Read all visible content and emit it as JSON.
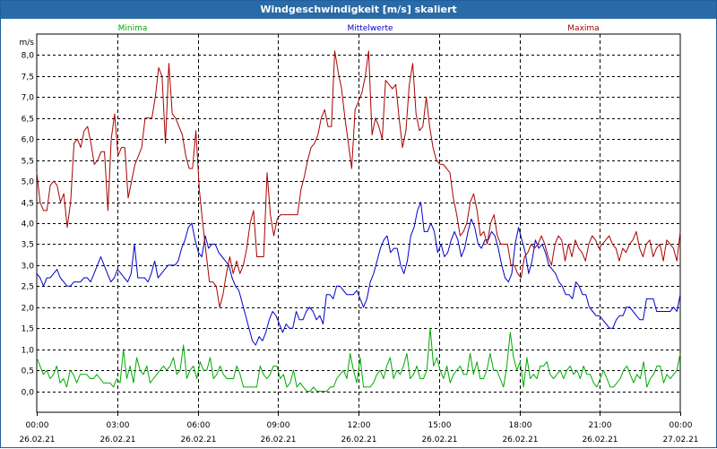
{
  "window": {
    "title": "Windgeschwindigkeit [m/s] skaliert"
  },
  "chart_data": {
    "type": "line",
    "unit": "m/s",
    "y_ticks": [
      "0,0",
      "0,5",
      "1,0",
      "1,5",
      "2,0",
      "2,5",
      "3,0",
      "3,5",
      "4,0",
      "4,5",
      "5,0",
      "5,5",
      "6,0",
      "6,5",
      "7,0",
      "7,5",
      "8,0"
    ],
    "ylim": [
      -0.5,
      8.5
    ],
    "x_ticks": [
      {
        "time": "00:00",
        "date": "26.02.21"
      },
      {
        "time": "03:00",
        "date": "26.02.21"
      },
      {
        "time": "06:00",
        "date": "26.02.21"
      },
      {
        "time": "09:00",
        "date": "26.02.21"
      },
      {
        "time": "12:00",
        "date": "26.02.21"
      },
      {
        "time": "15:00",
        "date": "26.02.21"
      },
      {
        "time": "18:00",
        "date": "26.02.21"
      },
      {
        "time": "21:00",
        "date": "26.02.21"
      },
      {
        "time": "00:00",
        "date": "27.02.21"
      }
    ],
    "xlim_hours": [
      0,
      24
    ],
    "grid": true,
    "series": [
      {
        "name": "Minima",
        "color": "#00aa00",
        "legend_position": "left",
        "values": [
          0.8,
          0.6,
          0.4,
          0.5,
          0.3,
          0.4,
          0.6,
          0.2,
          0.3,
          0.1,
          0.5,
          0.4,
          0.2,
          0.4,
          0.4,
          0.4,
          0.3,
          0.3,
          0.4,
          0.3,
          0.2,
          0.2,
          0.2,
          0.1,
          0.3,
          0.2,
          1.0,
          0.3,
          0.6,
          0.2,
          0.8,
          0.5,
          0.4,
          0.6,
          0.2,
          0.3,
          0.4,
          0.5,
          0.6,
          0.5,
          0.6,
          0.8,
          0.4,
          0.5,
          1.1,
          0.3,
          0.5,
          0.6,
          0.3,
          0.7,
          0.5,
          0.5,
          0.8,
          0.3,
          0.4,
          0.6,
          0.4,
          0.3,
          0.3,
          0.3,
          0.6,
          0.4,
          0.1,
          0.1,
          0.1,
          0.1,
          0.1,
          0.6,
          0.4,
          0.3,
          0.4,
          0.6,
          0.6,
          0.3,
          0.4,
          0.1,
          0.2,
          0.5,
          0.1,
          0.2,
          0.1,
          0.0,
          0.0,
          0.1,
          0.0,
          0.0,
          0.0,
          0.0,
          0.1,
          0.1,
          0.3,
          0.4,
          0.5,
          0.3,
          0.9,
          0.5,
          0.2,
          0.8,
          0.1,
          0.1,
          0.1,
          0.2,
          0.4,
          0.5,
          0.3,
          0.6,
          0.8,
          0.3,
          0.5,
          0.4,
          0.6,
          0.9,
          0.3,
          0.4,
          0.6,
          0.3,
          0.3,
          0.5,
          1.5,
          0.6,
          0.8,
          0.5,
          0.3,
          0.6,
          0.2,
          0.4,
          0.5,
          0.6,
          0.4,
          0.4,
          0.9,
          0.4,
          0.7,
          0.3,
          0.3,
          0.5,
          0.9,
          0.5,
          0.5,
          0.3,
          0.1,
          0.6,
          1.4,
          0.8,
          0.5,
          0.7,
          0.1,
          0.8,
          0.3,
          0.4,
          0.3,
          0.6,
          0.6,
          0.7,
          0.4,
          0.3,
          0.4,
          0.5,
          0.3,
          0.5,
          0.6,
          0.4,
          0.5,
          0.3,
          0.6,
          0.4,
          0.4,
          0.2,
          0.1,
          0.3,
          0.5,
          0.3,
          0.1,
          0.1,
          0.2,
          0.3,
          0.5,
          0.6,
          0.4,
          0.2,
          0.4,
          0.3,
          0.7,
          0.1,
          0.3,
          0.4,
          0.6,
          0.6,
          0.2,
          0.4,
          0.3,
          0.4,
          0.5,
          0.9
        ]
      },
      {
        "name": "Mittelwerte",
        "color": "#0000cc",
        "legend_position": "center",
        "values": [
          2.8,
          2.7,
          2.5,
          2.7,
          2.7,
          2.8,
          2.9,
          2.7,
          2.6,
          2.5,
          2.5,
          2.6,
          2.6,
          2.6,
          2.7,
          2.7,
          2.6,
          2.8,
          3.0,
          3.2,
          3.0,
          2.8,
          2.6,
          2.7,
          2.9,
          2.8,
          2.7,
          2.6,
          2.8,
          3.5,
          2.7,
          2.7,
          2.7,
          2.6,
          2.8,
          3.1,
          2.7,
          2.8,
          2.9,
          3.0,
          3.0,
          3.0,
          3.1,
          3.4,
          3.6,
          3.9,
          4.0,
          3.6,
          3.3,
          3.2,
          3.7,
          3.4,
          3.5,
          3.5,
          3.3,
          3.2,
          3.1,
          3.0,
          2.7,
          2.5,
          2.4,
          2.1,
          1.8,
          1.5,
          1.2,
          1.1,
          1.3,
          1.2,
          1.4,
          1.7,
          1.9,
          1.8,
          1.6,
          1.4,
          1.6,
          1.5,
          1.5,
          1.9,
          1.7,
          1.7,
          1.9,
          2.0,
          1.9,
          1.7,
          1.8,
          1.6,
          2.3,
          2.3,
          2.2,
          2.5,
          2.5,
          2.4,
          2.3,
          2.3,
          2.3,
          2.4,
          2.2,
          2.0,
          2.2,
          2.6,
          2.8,
          3.1,
          3.4,
          3.6,
          3.7,
          3.3,
          3.4,
          3.4,
          3.0,
          2.8,
          3.1,
          3.7,
          3.9,
          4.3,
          4.5,
          3.8,
          3.8,
          4.0,
          3.8,
          3.3,
          3.5,
          3.2,
          3.3,
          3.6,
          3.8,
          3.6,
          3.2,
          3.4,
          3.8,
          4.1,
          3.9,
          3.5,
          3.4,
          3.6,
          3.6,
          3.8,
          3.7,
          3.4,
          3.0,
          2.7,
          2.6,
          2.8,
          3.5,
          3.9,
          3.6,
          3.3,
          2.8,
          3.1,
          3.6,
          3.4,
          3.5,
          3.3,
          3.0,
          2.9,
          2.8,
          2.6,
          2.5,
          2.3,
          2.3,
          2.2,
          2.6,
          2.5,
          2.3,
          2.3,
          2.0,
          1.9,
          1.8,
          1.8,
          1.7,
          1.6,
          1.5,
          1.5,
          1.7,
          1.8,
          1.8,
          2.0,
          2.0,
          1.9,
          1.8,
          1.7,
          1.7,
          2.2,
          2.2,
          2.2,
          1.9,
          1.9,
          1.9,
          1.9,
          1.9,
          2.0,
          1.9,
          2.3
        ]
      },
      {
        "name": "Maxima",
        "color": "#aa0000",
        "legend_position": "right",
        "values": [
          5.2,
          4.5,
          4.3,
          4.3,
          4.9,
          5.0,
          4.9,
          4.5,
          4.7,
          3.9,
          4.5,
          5.9,
          6.0,
          5.8,
          6.2,
          6.3,
          5.9,
          5.4,
          5.5,
          5.7,
          5.7,
          4.3,
          6.0,
          6.6,
          5.6,
          5.8,
          5.8,
          4.6,
          5.0,
          5.4,
          5.6,
          5.8,
          6.5,
          6.5,
          6.5,
          7.0,
          7.7,
          7.5,
          5.9,
          7.8,
          6.6,
          6.5,
          6.3,
          6.1,
          5.6,
          5.3,
          5.3,
          6.2,
          4.8,
          4.0,
          3.3,
          2.6,
          2.6,
          2.5,
          2.0,
          2.3,
          2.8,
          3.2,
          2.8,
          3.1,
          2.8,
          3.0,
          3.4,
          4.0,
          4.3,
          3.2,
          3.2,
          3.2,
          5.2,
          4.2,
          3.7,
          4.1,
          4.2,
          4.2,
          4.2,
          4.2,
          4.2,
          4.2,
          4.8,
          5.1,
          5.5,
          5.8,
          5.9,
          6.1,
          6.5,
          6.7,
          6.3,
          6.3,
          8.1,
          7.6,
          7.2,
          6.5,
          5.9,
          5.3,
          6.7,
          6.9,
          7.1,
          7.5,
          8.1,
          6.1,
          6.5,
          6.3,
          6.0,
          7.4,
          7.3,
          7.2,
          7.3,
          6.5,
          5.8,
          6.2,
          7.3,
          7.8,
          6.6,
          6.2,
          6.3,
          7.0,
          6.3,
          5.8,
          5.5,
          5.4,
          5.4,
          5.3,
          5.2,
          4.6,
          4.2,
          3.7,
          3.8,
          4.0,
          4.5,
          4.7,
          4.3,
          3.7,
          3.8,
          3.5,
          4.0,
          4.2,
          3.7,
          3.5,
          3.5,
          3.5,
          3.0,
          3.0,
          2.8,
          2.7,
          3.2,
          3.3,
          3.5,
          3.4,
          3.5,
          3.7,
          3.5,
          3.2,
          3.0,
          3.5,
          3.7,
          3.6,
          3.1,
          3.5,
          3.2,
          3.6,
          3.4,
          3.3,
          3.1,
          3.5,
          3.7,
          3.6,
          3.4,
          3.5,
          3.6,
          3.7,
          3.5,
          3.4,
          3.1,
          3.4,
          3.3,
          3.5,
          3.6,
          3.8,
          3.4,
          3.2,
          3.5,
          3.6,
          3.2,
          3.4,
          3.5,
          3.1,
          3.6,
          3.5,
          3.4,
          3.1,
          3.8
        ]
      }
    ]
  }
}
